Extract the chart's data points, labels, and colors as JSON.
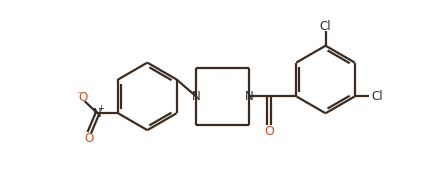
{
  "bg_color": "#ffffff",
  "line_color": "#3d2b1f",
  "nitrogen_color": "#3d3d6b",
  "oxygen_color": "#c8512a",
  "dark_color": "#2a2a2a",
  "line_width": 1.6,
  "dbo": 0.055,
  "font_size": 8.5,
  "xlim": [
    0,
    10.5
  ],
  "ylim": [
    0,
    5.0
  ],
  "figw": 4.41,
  "figh": 1.89,
  "dpi": 100
}
